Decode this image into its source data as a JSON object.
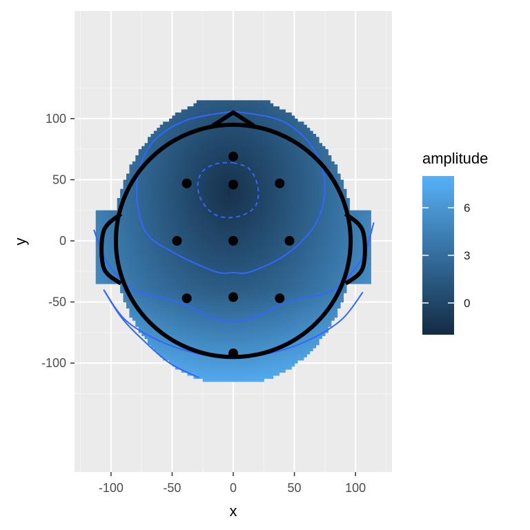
{
  "chart_data": {
    "type": "heatmap",
    "xlabel": "x",
    "ylabel": "y",
    "xlim": [
      -125,
      125
    ],
    "ylim": [
      -125,
      125
    ],
    "x_ticks": [
      -100,
      -50,
      0,
      50,
      100
    ],
    "y_ticks": [
      -100,
      -50,
      0,
      50,
      100
    ],
    "x_tick_labels": [
      "-100",
      "-50",
      "0",
      "50",
      "100"
    ],
    "y_tick_labels": [
      "-100",
      "-50",
      "0",
      "50",
      "100"
    ],
    "grid": true,
    "legend": {
      "title": "amplitude",
      "position": "right",
      "range": [
        -2.0,
        8.0
      ],
      "breaks": [
        0,
        3,
        6
      ],
      "labels": [
        "0",
        "3",
        "6"
      ],
      "low_color": "#132b43",
      "high_color": "#56b1f7"
    },
    "fill_field": {
      "extent_x": [
        -115,
        115
      ],
      "extent_y": [
        -115,
        115
      ],
      "minimum": {
        "x": -3,
        "y": 40,
        "value": -1.5
      },
      "description_values": "amplitude lowest near (0,40), rising toward the bottom edge"
    },
    "head_outline": {
      "head_ellipse": {
        "cx": 0,
        "cy": 0,
        "rx": 96,
        "ry": 95
      },
      "nose": [
        [
          -17,
          94
        ],
        [
          0,
          105
        ],
        [
          17,
          94
        ]
      ],
      "left_ear": [
        [
          -92,
          22
        ],
        [
          -106,
          8
        ],
        [
          -106,
          -22
        ],
        [
          -92,
          -35
        ]
      ],
      "right_ear": [
        [
          92,
          22
        ],
        [
          106,
          8
        ],
        [
          106,
          -22
        ],
        [
          92,
          -35
        ]
      ],
      "color": "#000000"
    },
    "electrodes": [
      {
        "x": 0,
        "y": 69
      },
      {
        "x": -38,
        "y": 47
      },
      {
        "x": 0,
        "y": 46
      },
      {
        "x": 38,
        "y": 47
      },
      {
        "x": -46,
        "y": 0
      },
      {
        "x": 0,
        "y": 0
      },
      {
        "x": 46,
        "y": 0
      },
      {
        "x": -38,
        "y": -47
      },
      {
        "x": 0,
        "y": -46
      },
      {
        "x": 38,
        "y": -47
      },
      {
        "x": 0,
        "y": -92
      }
    ],
    "contour_color": "#3366ff",
    "contours": [
      {
        "level": "dashed",
        "dashed": true,
        "points": [
          [
            0,
            64
          ],
          [
            13,
            59
          ],
          [
            20,
            45
          ],
          [
            19,
            30
          ],
          [
            10,
            22
          ],
          [
            -3,
            19
          ],
          [
            -16,
            22
          ],
          [
            -26,
            33
          ],
          [
            -29,
            46
          ],
          [
            -25,
            57
          ],
          [
            -14,
            63
          ],
          [
            0,
            64
          ]
        ]
      },
      {
        "level": "inner",
        "dashed": false,
        "points": [
          [
            0,
            106
          ],
          [
            40,
            98
          ],
          [
            66,
            75
          ],
          [
            75,
            45
          ],
          [
            68,
            15
          ],
          [
            45,
            -10
          ],
          [
            15,
            -25
          ],
          [
            0,
            -26
          ],
          [
            -15,
            -25
          ],
          [
            -48,
            -10
          ],
          [
            -72,
            8
          ],
          [
            -79,
            45
          ],
          [
            -68,
            78
          ],
          [
            -40,
            98
          ],
          [
            0,
            106
          ]
        ]
      },
      {
        "level": "middle",
        "dashed": false,
        "points": [
          [
            -114,
            9
          ],
          [
            -103,
            -18
          ],
          [
            -82,
            -40
          ],
          [
            -52,
            -48
          ],
          [
            -35,
            -54
          ],
          [
            -20,
            -62
          ],
          [
            0,
            -66
          ],
          [
            20,
            -62
          ],
          [
            35,
            -54
          ],
          [
            52,
            -48
          ],
          [
            82,
            -40
          ],
          [
            105,
            -15
          ],
          [
            115,
            15
          ]
        ]
      },
      {
        "level": "outer",
        "dashed": false,
        "points": [
          [
            -106,
            -40
          ],
          [
            -88,
            -65
          ],
          [
            -60,
            -82
          ],
          [
            -30,
            -92
          ],
          [
            0,
            -96
          ],
          [
            30,
            -92
          ],
          [
            60,
            -82
          ],
          [
            88,
            -65
          ],
          [
            106,
            -42
          ]
        ]
      },
      {
        "level": "edge",
        "dashed": false,
        "points": [
          [
            -106,
            -40
          ],
          [
            -92,
            -62
          ],
          [
            -75,
            -80
          ],
          [
            -52,
            -100
          ],
          [
            -28,
            -112
          ]
        ]
      }
    ]
  }
}
